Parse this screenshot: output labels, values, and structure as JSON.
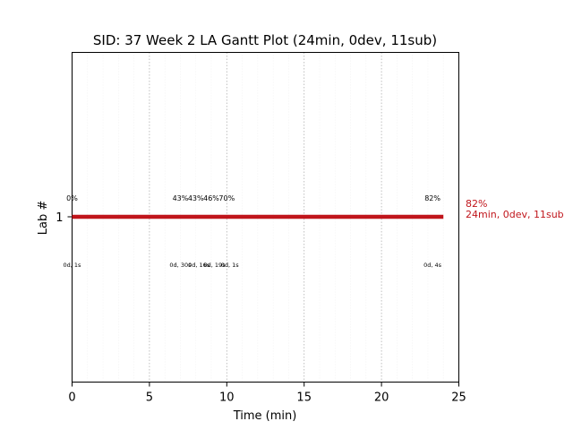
{
  "chart_data": {
    "type": "gantt",
    "title": "SID: 37 Week 2 LA Gantt Plot (24min, 0dev, 11sub)",
    "xlabel": "Time (min)",
    "ylabel": "Lab #",
    "xlim": [
      0,
      25
    ],
    "x_ticks": [
      0,
      5,
      10,
      15,
      20,
      25
    ],
    "x_tick_labels": [
      "0",
      "5",
      "10",
      "15",
      "20",
      "25"
    ],
    "y_tick_labels": [
      "1"
    ],
    "grid": true,
    "bar_color": "#c0151b",
    "bars": [
      {
        "lab": "1",
        "start": 0,
        "end": 24
      }
    ],
    "score_annotations": [
      {
        "x": 0,
        "label": "0%"
      },
      {
        "x": 7.0,
        "label": "43%"
      },
      {
        "x": 8.0,
        "label": "43%"
      },
      {
        "x": 9.0,
        "label": "46%"
      },
      {
        "x": 10.0,
        "label": "70%"
      },
      {
        "x": 23.3,
        "label": "82%"
      }
    ],
    "time_annotations": [
      {
        "x": 0,
        "label": "0d, 1s"
      },
      {
        "x": 7.0,
        "label": "0d, 30s"
      },
      {
        "x": 8.2,
        "label": "0d, 16s"
      },
      {
        "x": 9.2,
        "label": "0d, 19s"
      },
      {
        "x": 10.2,
        "label": "0d, 1s"
      },
      {
        "x": 23.3,
        "label": "0d, 4s"
      }
    ],
    "end_label": [
      "82%",
      "24min, 0dev, 11sub"
    ]
  }
}
